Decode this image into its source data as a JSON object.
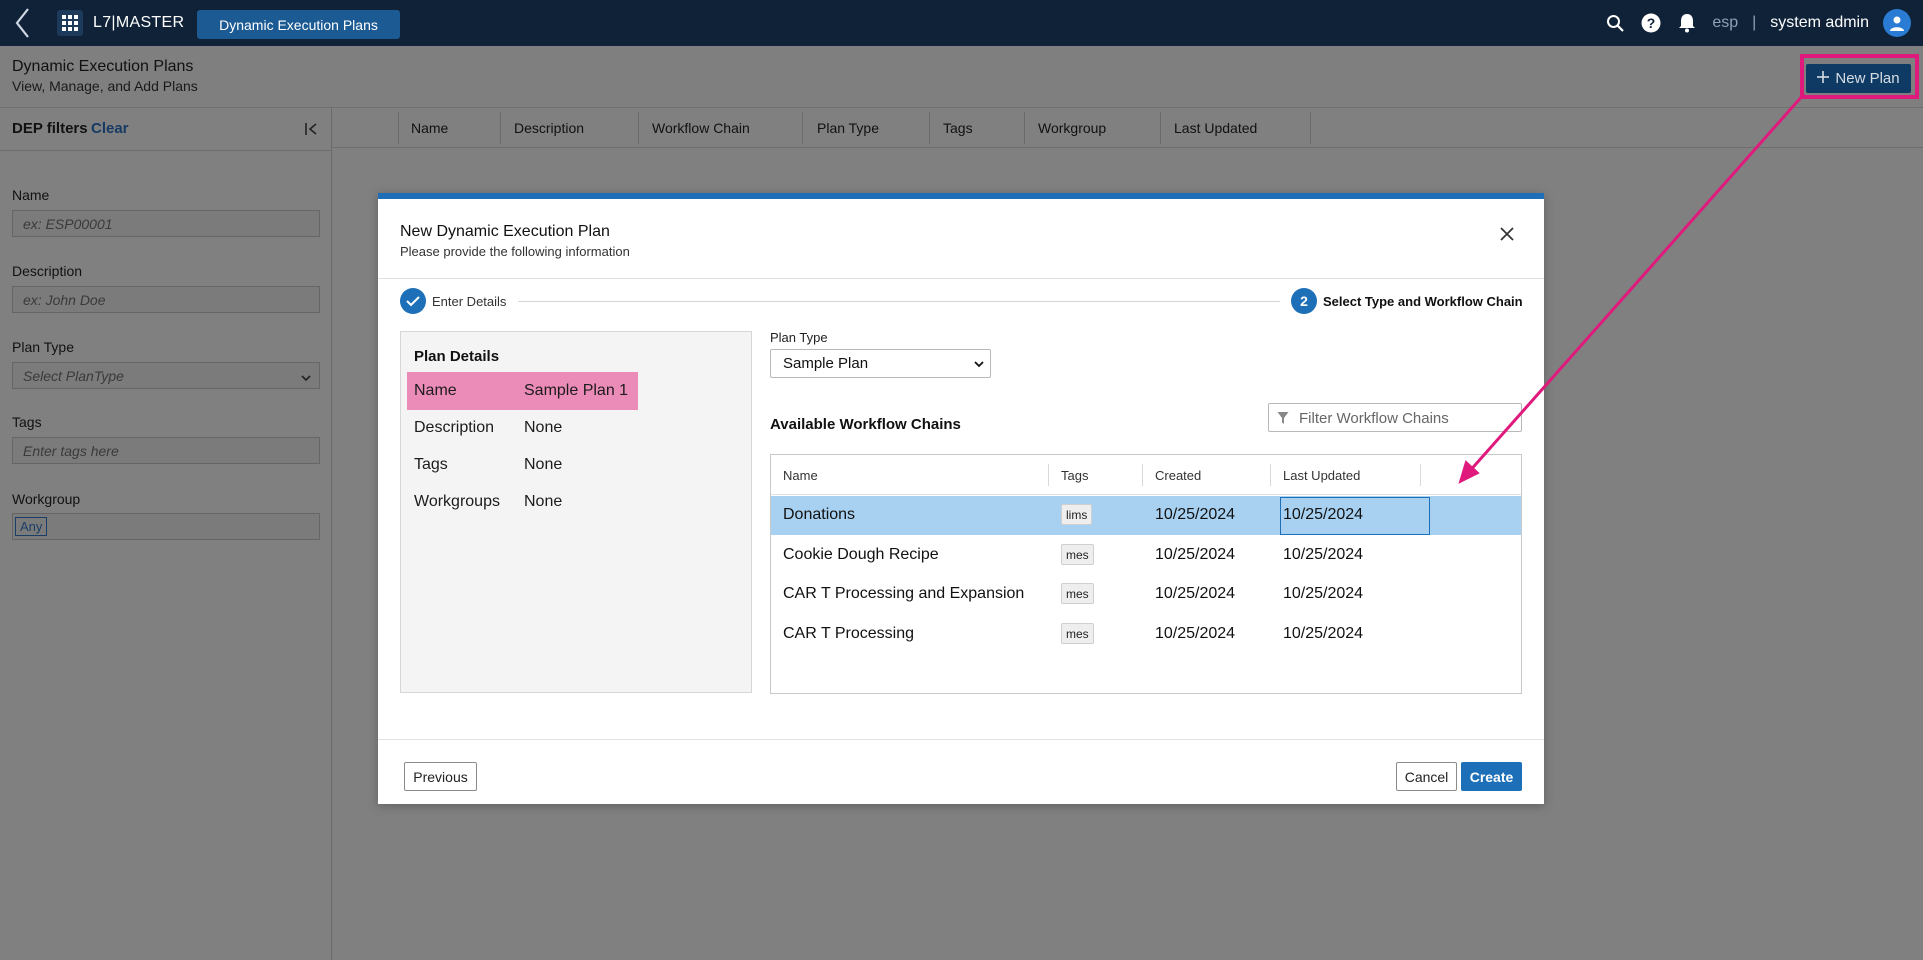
{
  "topbar": {
    "brand": "L7|MASTER",
    "app_tab": "Dynamic Execution Plans",
    "tenant": "esp",
    "separator": "|",
    "user": "system admin"
  },
  "page": {
    "title": "Dynamic Execution Plans",
    "subtitle": "View, Manage, and Add Plans",
    "new_plan_label": "New Plan"
  },
  "filters": {
    "title": "DEP filters",
    "clear": "Clear",
    "name_label": "Name",
    "name_placeholder": "ex: ESP00001",
    "description_label": "Description",
    "description_placeholder": "ex: John Doe",
    "plan_type_label": "Plan Type",
    "plan_type_placeholder": "Select PlanType",
    "tags_label": "Tags",
    "tags_placeholder": "Enter tags here",
    "workgroup_label": "Workgroup",
    "workgroup_value": "Any"
  },
  "bg_table": {
    "columns": [
      "Name",
      "Description",
      "Workflow Chain",
      "Plan Type",
      "Tags",
      "Workgroup",
      "Last Updated"
    ]
  },
  "modal": {
    "title": "New Dynamic Execution Plan",
    "subtitle": "Please provide the following information",
    "step1_label": "Enter Details",
    "step2_number": "2",
    "step2_label": "Select Type and Workflow Chain",
    "details_title": "Plan Details",
    "details": [
      {
        "key": "Name",
        "value": "Sample Plan 1"
      },
      {
        "key": "Description",
        "value": "None"
      },
      {
        "key": "Tags",
        "value": "None"
      },
      {
        "key": "Workgroups",
        "value": "None"
      }
    ],
    "plan_type_label": "Plan Type",
    "plan_type_value": "Sample Plan",
    "available_label": "Available Workflow Chains",
    "filter_placeholder": "Filter Workflow Chains",
    "table_columns": [
      "Name",
      "Tags",
      "Created",
      "Last Updated"
    ],
    "rows": [
      {
        "name": "Donations",
        "tag": "lims",
        "created": "10/25/2024",
        "updated": "10/25/2024"
      },
      {
        "name": "Cookie Dough Recipe",
        "tag": "mes",
        "created": "10/25/2024",
        "updated": "10/25/2024"
      },
      {
        "name": "CAR T Processing and Expansion",
        "tag": "mes",
        "created": "10/25/2024",
        "updated": "10/25/2024"
      },
      {
        "name": "CAR T Processing",
        "tag": "mes",
        "created": "10/25/2024",
        "updated": "10/25/2024"
      }
    ],
    "previous_label": "Previous",
    "cancel_label": "Cancel",
    "create_label": "Create"
  },
  "colors": {
    "topbar": "#0f2238",
    "accent": "#1d6fb8",
    "annotation": "#e0197d",
    "highlight_row": "#ea8bb8",
    "selected_row": "#a8d1f1"
  },
  "icons": [
    "back-chevron-icon",
    "app-grid-icon",
    "search-icon",
    "help-icon",
    "bell-icon",
    "user-avatar-icon",
    "plus-icon",
    "collapse-panel-icon",
    "chevron-down-icon",
    "close-icon",
    "check-icon",
    "filter-funnel-icon"
  ]
}
